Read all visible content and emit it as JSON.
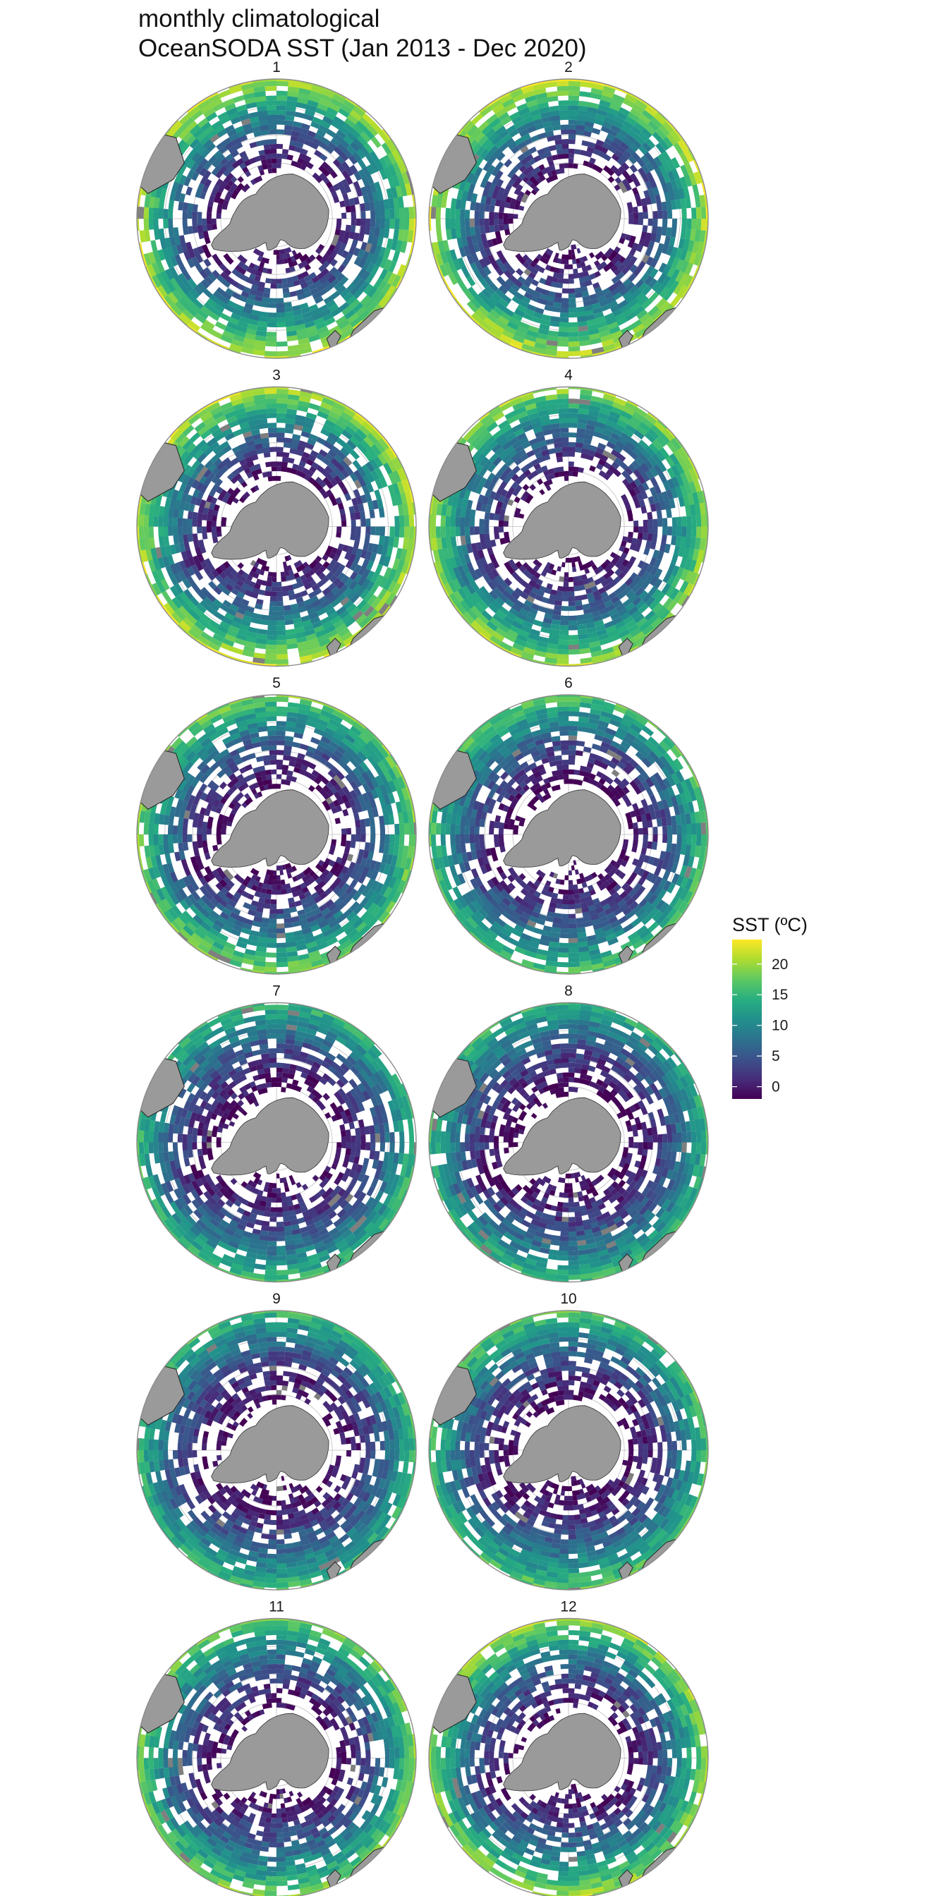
{
  "title": {
    "line1": "monthly climatological",
    "line2": "OceanSODA SST (Jan 2013 - Dec 2020)"
  },
  "legend": {
    "title": "SST (ºC)",
    "ticks": [
      {
        "value": 0,
        "label": "0"
      },
      {
        "value": 5,
        "label": "5"
      },
      {
        "value": 10,
        "label": "10"
      },
      {
        "value": 15,
        "label": "15"
      },
      {
        "value": 20,
        "label": "20"
      }
    ],
    "range": [
      -2,
      24
    ],
    "colormap": [
      "#440154",
      "#472d7b",
      "#3b528b",
      "#2c728e",
      "#21918c",
      "#28ae80",
      "#5ec962",
      "#addc30",
      "#fde725"
    ]
  },
  "colors": {
    "land": "#9a9a9a",
    "no_data": "#7f7f7f",
    "grid": "#bdbdbd",
    "outline": "#8c8c8c"
  },
  "panels": [
    {
      "label": "1",
      "month": 1
    },
    {
      "label": "2",
      "month": 2
    },
    {
      "label": "3",
      "month": 3
    },
    {
      "label": "4",
      "month": 4
    },
    {
      "label": "5",
      "month": 5
    },
    {
      "label": "6",
      "month": 6
    },
    {
      "label": "7",
      "month": 7
    },
    {
      "label": "8",
      "month": 8
    },
    {
      "label": "9",
      "month": 9
    },
    {
      "label": "10",
      "month": 10
    },
    {
      "label": "11",
      "month": 11
    },
    {
      "label": "12",
      "month": 12
    }
  ]
}
